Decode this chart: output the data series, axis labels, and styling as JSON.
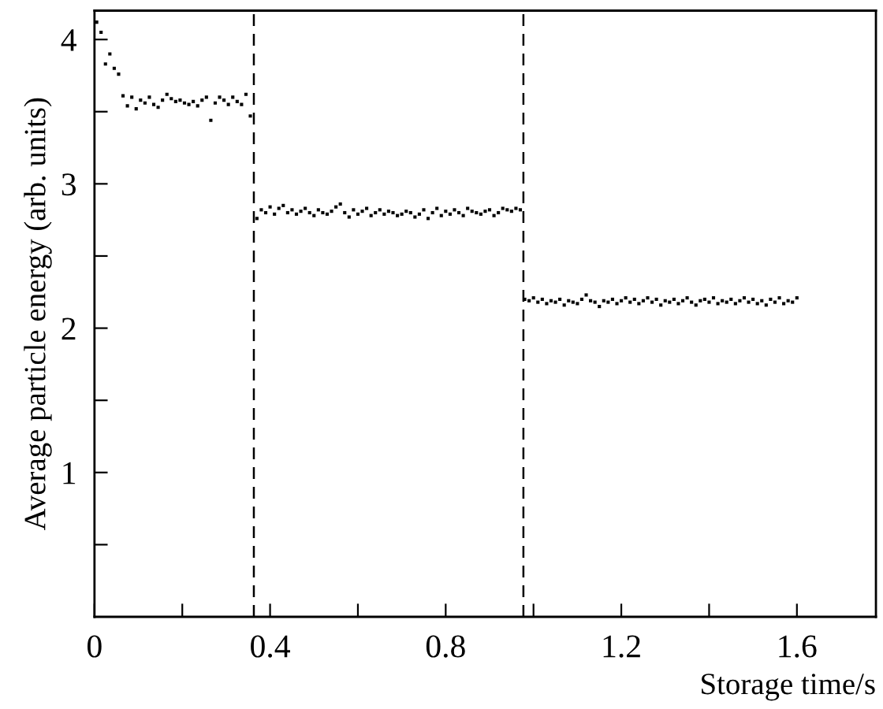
{
  "chart_data": {
    "type": "scatter",
    "xlabel": "Storage time/s",
    "ylabel": "Average particle energy (arb. units)",
    "xlim": [
      0,
      1.78
    ],
    "ylim": [
      0,
      4.2
    ],
    "xticks": [
      0,
      {
        "value": 0.2,
        "label": null
      },
      0.4,
      {
        "value": 0.6,
        "label": null
      },
      0.8,
      {
        "value": 1.0,
        "label": null
      },
      1.2,
      {
        "value": 1.4,
        "label": null
      },
      1.6
    ],
    "yticks": [
      {
        "value": 0.5,
        "label": null
      },
      1,
      {
        "value": 1.5,
        "label": null
      },
      2,
      {
        "value": 2.5,
        "label": null
      },
      3,
      {
        "value": 3.5,
        "label": null
      },
      4
    ],
    "marker": "square",
    "grid": false,
    "legend": false,
    "series": [
      {
        "color": "#000000",
        "x": [
          0.005,
          0.015,
          0.025,
          0.035,
          0.045,
          0.055,
          0.065,
          0.075,
          0.085,
          0.095,
          0.105,
          0.115,
          0.125,
          0.135,
          0.145,
          0.155,
          0.165,
          0.175,
          0.185,
          0.195,
          0.205,
          0.215,
          0.225,
          0.235,
          0.245,
          0.255,
          0.265,
          0.275,
          0.285,
          0.295,
          0.305,
          0.315,
          0.325,
          0.335,
          0.345,
          0.355
        ],
        "values": [
          4.12,
          4.05,
          3.83,
          3.9,
          3.8,
          3.76,
          3.61,
          3.54,
          3.6,
          3.52,
          3.58,
          3.56,
          3.6,
          3.55,
          3.53,
          3.58,
          3.62,
          3.59,
          3.57,
          3.58,
          3.56,
          3.55,
          3.57,
          3.54,
          3.58,
          3.6,
          3.44,
          3.56,
          3.6,
          3.58,
          3.55,
          3.6,
          3.57,
          3.55,
          3.62,
          3.47
        ]
      },
      {
        "color": "#000000",
        "x": [
          0.37,
          0.38,
          0.39,
          0.4,
          0.41,
          0.42,
          0.43,
          0.44,
          0.45,
          0.46,
          0.47,
          0.48,
          0.49,
          0.5,
          0.51,
          0.52,
          0.53,
          0.54,
          0.55,
          0.56,
          0.57,
          0.58,
          0.59,
          0.6,
          0.61,
          0.62,
          0.63,
          0.64,
          0.65,
          0.66,
          0.67,
          0.68,
          0.69,
          0.7,
          0.71,
          0.72,
          0.73,
          0.74,
          0.75,
          0.76,
          0.77,
          0.78,
          0.79,
          0.8,
          0.81,
          0.82,
          0.83,
          0.84,
          0.85,
          0.86,
          0.87,
          0.88,
          0.89,
          0.9,
          0.91,
          0.92,
          0.93,
          0.94,
          0.95,
          0.96,
          0.97
        ],
        "values": [
          2.76,
          2.82,
          2.8,
          2.84,
          2.79,
          2.83,
          2.85,
          2.8,
          2.82,
          2.79,
          2.81,
          2.83,
          2.8,
          2.78,
          2.82,
          2.8,
          2.79,
          2.81,
          2.84,
          2.86,
          2.8,
          2.77,
          2.82,
          2.79,
          2.81,
          2.83,
          2.78,
          2.8,
          2.82,
          2.79,
          2.81,
          2.8,
          2.78,
          2.79,
          2.81,
          2.8,
          2.77,
          2.79,
          2.82,
          2.76,
          2.8,
          2.83,
          2.78,
          2.81,
          2.79,
          2.82,
          2.8,
          2.78,
          2.83,
          2.81,
          2.8,
          2.79,
          2.81,
          2.82,
          2.78,
          2.8,
          2.83,
          2.82,
          2.81,
          2.83,
          2.82
        ]
      },
      {
        "color": "#000000",
        "x": [
          0.98,
          0.99,
          1.0,
          1.01,
          1.02,
          1.03,
          1.04,
          1.05,
          1.06,
          1.07,
          1.08,
          1.09,
          1.1,
          1.11,
          1.12,
          1.13,
          1.14,
          1.15,
          1.16,
          1.17,
          1.18,
          1.19,
          1.2,
          1.21,
          1.22,
          1.23,
          1.24,
          1.25,
          1.26,
          1.27,
          1.28,
          1.29,
          1.3,
          1.31,
          1.32,
          1.33,
          1.34,
          1.35,
          1.36,
          1.37,
          1.38,
          1.39,
          1.4,
          1.41,
          1.42,
          1.43,
          1.44,
          1.45,
          1.46,
          1.47,
          1.48,
          1.49,
          1.5,
          1.51,
          1.52,
          1.53,
          1.54,
          1.55,
          1.56,
          1.57,
          1.58,
          1.59,
          1.6
        ],
        "values": [
          2.2,
          2.19,
          2.21,
          2.18,
          2.2,
          2.17,
          2.19,
          2.18,
          2.2,
          2.16,
          2.19,
          2.18,
          2.17,
          2.2,
          2.23,
          2.19,
          2.18,
          2.15,
          2.19,
          2.18,
          2.2,
          2.17,
          2.19,
          2.21,
          2.18,
          2.2,
          2.17,
          2.19,
          2.21,
          2.18,
          2.2,
          2.16,
          2.19,
          2.18,
          2.2,
          2.17,
          2.19,
          2.21,
          2.18,
          2.16,
          2.19,
          2.2,
          2.18,
          2.21,
          2.17,
          2.19,
          2.18,
          2.2,
          2.17,
          2.19,
          2.21,
          2.18,
          2.2,
          2.17,
          2.19,
          2.16,
          2.2,
          2.18,
          2.21,
          2.17,
          2.19,
          2.18,
          2.21
        ]
      }
    ],
    "ref_lines": [
      {
        "axis": "x",
        "value": 0.363,
        "color": "#000000",
        "line_style": "dashed"
      },
      {
        "axis": "x",
        "value": 0.977,
        "color": "#000000",
        "line_style": "dashed"
      }
    ]
  }
}
